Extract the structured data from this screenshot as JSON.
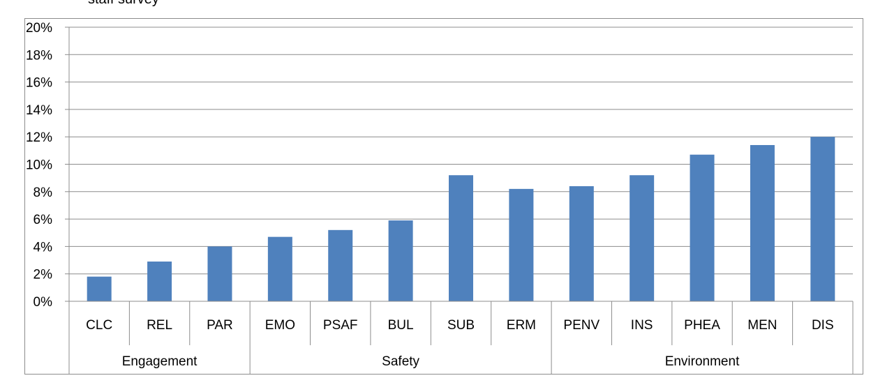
{
  "page": {
    "top_text": "staff survey"
  },
  "chart_data": {
    "type": "bar",
    "title": "",
    "xlabel": "",
    "ylabel": "",
    "ylim": [
      0,
      20
    ],
    "y_ticks": [
      "0%",
      "2%",
      "4%",
      "6%",
      "8%",
      "10%",
      "12%",
      "14%",
      "16%",
      "18%",
      "20%"
    ],
    "grid": true,
    "bar_color": "#4f81bd",
    "categories": [
      "CLC",
      "REL",
      "PAR",
      "EMO",
      "PSAF",
      "BUL",
      "SUB",
      "ERM",
      "PENV",
      "INS",
      "PHEA",
      "MEN",
      "DIS"
    ],
    "values": [
      1.8,
      2.9,
      4.0,
      4.7,
      5.2,
      5.9,
      9.2,
      8.2,
      8.4,
      9.2,
      10.7,
      11.4,
      12.0
    ],
    "groups": [
      {
        "name": "Engagement",
        "count": 3
      },
      {
        "name": "Safety",
        "count": 5
      },
      {
        "name": "Environment",
        "count": 5
      }
    ]
  }
}
